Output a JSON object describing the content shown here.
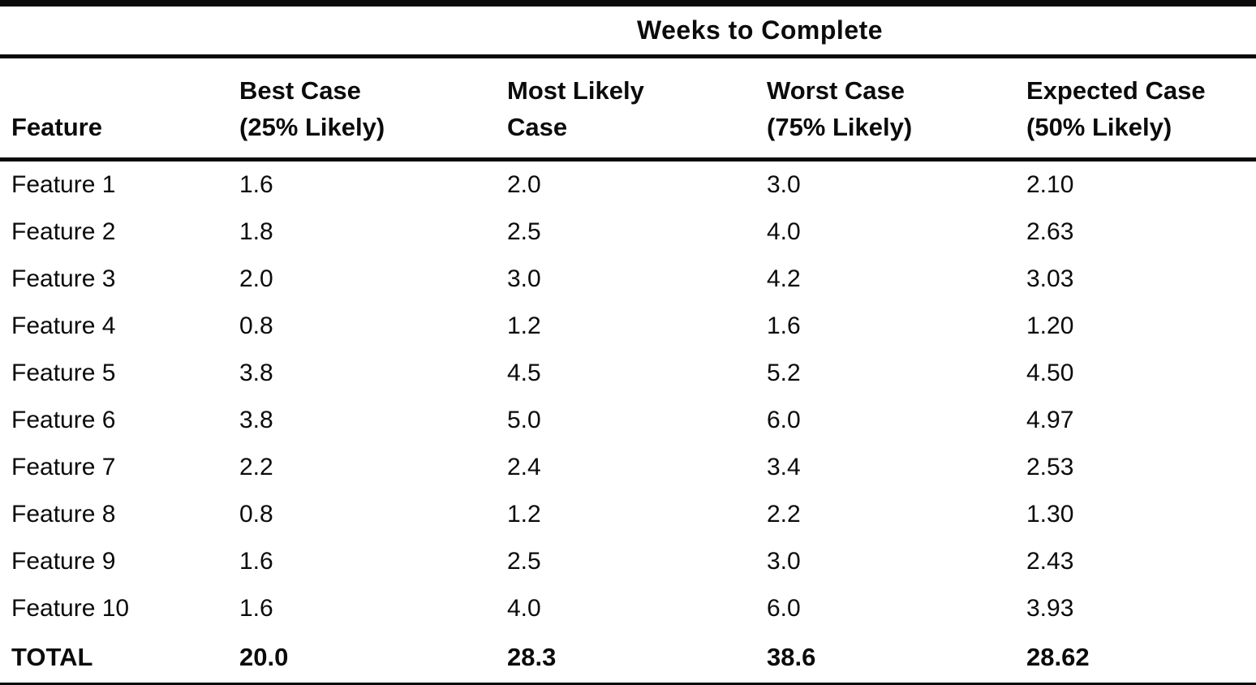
{
  "table": {
    "spanner_title": "Weeks to Complete",
    "columns": [
      {
        "id": "feature",
        "label": "Feature"
      },
      {
        "id": "best_case",
        "label": "Best Case\n(25% Likely)"
      },
      {
        "id": "most_likely_case",
        "label": "Most Likely\nCase"
      },
      {
        "id": "worst_case",
        "label": "Worst Case\n(75% Likely)"
      },
      {
        "id": "expected_case",
        "label": "Expected Case\n(50% Likely)"
      }
    ],
    "rows": [
      [
        "Feature 1",
        "1.6",
        "2.0",
        "3.0",
        "2.10"
      ],
      [
        "Feature 2",
        "1.8",
        "2.5",
        "4.0",
        "2.63"
      ],
      [
        "Feature 3",
        "2.0",
        "3.0",
        "4.2",
        "3.03"
      ],
      [
        "Feature 4",
        "0.8",
        "1.2",
        "1.6",
        "1.20"
      ],
      [
        "Feature 5",
        "3.8",
        "4.5",
        "5.2",
        "4.50"
      ],
      [
        "Feature 6",
        "3.8",
        "5.0",
        "6.0",
        "4.97"
      ],
      [
        "Feature 7",
        "2.2",
        "2.4",
        "3.4",
        "2.53"
      ],
      [
        "Feature 8",
        "0.8",
        "1.2",
        "2.2",
        "1.30"
      ],
      [
        "Feature 9",
        "1.6",
        "2.5",
        "3.0",
        "2.43"
      ],
      [
        "Feature 10",
        "1.6",
        "4.0",
        "6.0",
        "3.93"
      ]
    ],
    "total_row": [
      "TOTAL",
      "20.0",
      "28.3",
      "38.6",
      "28.62"
    ],
    "colors": {
      "text": "#0b0b0b",
      "rule": "#0b0b0b",
      "background": "#ffffff"
    }
  }
}
